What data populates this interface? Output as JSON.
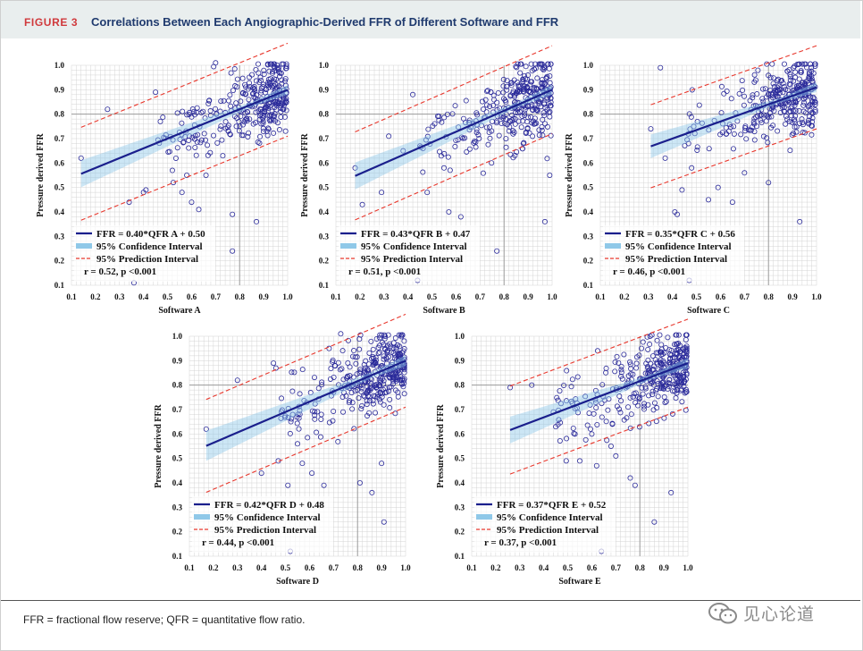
{
  "header": {
    "figure_label": "FIGURE 3",
    "title": "Correlations Between Each Angiographic-Derived FFR of Different Software and FFR"
  },
  "footer": {
    "note": "FFR = fractional flow reserve; QFR = quantitative flow ratio."
  },
  "watermark": {
    "text": "见心论道",
    "icon": "wechat-icon"
  },
  "colors": {
    "regression": "#1a1f8c",
    "ci_band": "#8fc8e8",
    "prediction": "#e8372c",
    "points": "#2a2a9a",
    "grid": "#d4d4d4",
    "cutoff": "#9a9a9a"
  },
  "chart_data": [
    {
      "id": "A",
      "type": "scatter",
      "xlabel": "Software A",
      "ylabel": "Pressure derived FFR",
      "xlim": [
        0.1,
        1.0
      ],
      "ylim": [
        0.1,
        1.0
      ],
      "x_ticks": [
        "0.1",
        "0.2",
        "0.3",
        "0.4",
        "0.5",
        "0.6",
        "0.7",
        "0.8",
        "0.9",
        "1.0"
      ],
      "y_ticks": [
        "0.1",
        "0.2",
        "0.3",
        "0.4",
        "0.5",
        "0.6",
        "0.7",
        "0.8",
        "0.9",
        "1.0"
      ],
      "cutoff": 0.8,
      "slope": 0.4,
      "intercept": 0.5,
      "x_range": [
        0.14,
        1.0
      ],
      "pi_offset": 0.19,
      "ci_half": 0.025,
      "legend": [
        "FFR = 0.40*QFR A + 0.50",
        "95% Confidence Interval",
        "95% Prediction Interval",
        "r = 0.52, p <0.001"
      ],
      "outliers": [
        [
          0.14,
          0.62
        ],
        [
          0.25,
          0.82
        ],
        [
          0.34,
          0.44
        ],
        [
          0.4,
          0.48
        ],
        [
          0.41,
          0.49
        ],
        [
          0.45,
          0.89
        ],
        [
          0.56,
          0.48
        ],
        [
          0.6,
          0.44
        ],
        [
          0.63,
          0.41
        ],
        [
          0.7,
          1.01
        ],
        [
          0.73,
          0.63
        ],
        [
          0.77,
          0.39
        ],
        [
          0.77,
          0.24
        ],
        [
          0.87,
          0.36
        ],
        [
          0.47,
          0.77
        ],
        [
          0.52,
          0.57
        ],
        [
          0.58,
          0.55
        ],
        [
          0.66,
          0.55
        ],
        [
          0.36,
          0.11
        ]
      ],
      "n_cloud": 330,
      "seed": 11
    },
    {
      "id": "B",
      "type": "scatter",
      "xlabel": "Software B",
      "ylabel": "Pressure derived FFR",
      "xlim": [
        0.1,
        1.0
      ],
      "ylim": [
        0.1,
        1.0
      ],
      "x_ticks": [
        "0.1",
        "0.2",
        "0.3",
        "0.4",
        "0.5",
        "0.6",
        "0.7",
        "0.8",
        "0.9",
        "1.0"
      ],
      "y_ticks": [
        "0.1",
        "0.2",
        "0.3",
        "0.4",
        "0.5",
        "0.6",
        "0.7",
        "0.8",
        "0.9",
        "1.0"
      ],
      "cutoff": 0.8,
      "slope": 0.43,
      "intercept": 0.47,
      "x_range": [
        0.18,
        1.0
      ],
      "pi_offset": 0.18,
      "ci_half": 0.025,
      "legend": [
        "FFR = 0.43*QFR B + 0.47",
        "95% Confidence Interval",
        "95% Prediction Interval",
        "r = 0.51, p <0.001"
      ],
      "outliers": [
        [
          0.18,
          0.58
        ],
        [
          0.21,
          0.43
        ],
        [
          0.29,
          0.48
        ],
        [
          0.32,
          0.71
        ],
        [
          0.38,
          0.65
        ],
        [
          0.42,
          0.88
        ],
        [
          0.45,
          0.67
        ],
        [
          0.48,
          0.48
        ],
        [
          0.55,
          0.58
        ],
        [
          0.57,
          0.4
        ],
        [
          0.62,
          0.38
        ],
        [
          0.77,
          0.24
        ],
        [
          0.97,
          0.36
        ],
        [
          0.44,
          0.12
        ],
        [
          0.99,
          0.55
        ]
      ],
      "n_cloud": 330,
      "seed": 23
    },
    {
      "id": "C",
      "type": "scatter",
      "xlabel": "Software C",
      "ylabel": "Pressure derived FFR",
      "xlim": [
        0.1,
        1.0
      ],
      "ylim": [
        0.1,
        1.0
      ],
      "x_ticks": [
        "0.1",
        "0.2",
        "0.3",
        "0.4",
        "0.5",
        "0.6",
        "0.7",
        "0.8",
        "0.9",
        "1.0"
      ],
      "y_ticks": [
        "0.1",
        "0.2",
        "0.3",
        "0.4",
        "0.5",
        "0.6",
        "0.7",
        "0.8",
        "0.9",
        "1.0"
      ],
      "cutoff": 0.8,
      "slope": 0.35,
      "intercept": 0.56,
      "x_range": [
        0.31,
        1.0
      ],
      "pi_offset": 0.17,
      "ci_half": 0.022,
      "legend": [
        "FFR = 0.35*QFR C + 0.56",
        "95% Confidence Interval",
        "95% Prediction Interval",
        "r = 0.46, p <0.001"
      ],
      "outliers": [
        [
          0.31,
          0.74
        ],
        [
          0.35,
          0.99
        ],
        [
          0.41,
          0.4
        ],
        [
          0.42,
          0.39
        ],
        [
          0.44,
          0.49
        ],
        [
          0.47,
          0.12
        ],
        [
          0.55,
          0.45
        ],
        [
          0.59,
          0.5
        ],
        [
          0.65,
          0.44
        ],
        [
          0.7,
          0.56
        ],
        [
          0.8,
          0.52
        ],
        [
          0.93,
          0.36
        ],
        [
          0.37,
          0.62
        ],
        [
          0.48,
          0.58
        ]
      ],
      "n_cloud": 330,
      "seed": 37
    },
    {
      "id": "D",
      "type": "scatter",
      "xlabel": "Software D",
      "ylabel": "Pressure derived FFR",
      "xlim": [
        0.1,
        1.0
      ],
      "ylim": [
        0.1,
        1.0
      ],
      "x_ticks": [
        "0.1",
        "0.2",
        "0.3",
        "0.4",
        "0.5",
        "0.6",
        "0.7",
        "0.8",
        "0.9",
        "1.0"
      ],
      "y_ticks": [
        "0.1",
        "0.2",
        "0.3",
        "0.4",
        "0.5",
        "0.6",
        "0.7",
        "0.8",
        "0.9",
        "1.0"
      ],
      "cutoff": 0.8,
      "slope": 0.42,
      "intercept": 0.48,
      "x_range": [
        0.17,
        1.0
      ],
      "pi_offset": 0.19,
      "ci_half": 0.028,
      "legend": [
        "FFR = 0.42*QFR D + 0.48",
        "95% Confidence Interval",
        "95% Prediction Interval",
        "r = 0.44, p <0.001"
      ],
      "outliers": [
        [
          0.17,
          0.62
        ],
        [
          0.3,
          0.82
        ],
        [
          0.4,
          0.44
        ],
        [
          0.45,
          0.89
        ],
        [
          0.47,
          0.49
        ],
        [
          0.51,
          0.39
        ],
        [
          0.57,
          0.48
        ],
        [
          0.61,
          0.44
        ],
        [
          0.66,
          0.39
        ],
        [
          0.73,
          1.01
        ],
        [
          0.81,
          0.4
        ],
        [
          0.86,
          0.36
        ],
        [
          0.9,
          0.48
        ],
        [
          0.91,
          0.24
        ],
        [
          0.52,
          0.12
        ],
        [
          0.55,
          0.56
        ]
      ],
      "n_cloud": 360,
      "seed": 53
    },
    {
      "id": "E",
      "type": "scatter",
      "xlabel": "Software E",
      "ylabel": "Pressure derived FFR",
      "xlim": [
        0.1,
        1.0
      ],
      "ylim": [
        0.1,
        1.0
      ],
      "x_ticks": [
        "0.1",
        "0.2",
        "0.3",
        "0.4",
        "0.5",
        "0.6",
        "0.7",
        "0.8",
        "0.9",
        "1.0"
      ],
      "y_ticks": [
        "0.1",
        "0.2",
        "0.3",
        "0.4",
        "0.5",
        "0.6",
        "0.7",
        "0.8",
        "0.9",
        "1.0"
      ],
      "cutoff": 0.8,
      "slope": 0.37,
      "intercept": 0.52,
      "x_range": [
        0.26,
        1.0
      ],
      "pi_offset": 0.18,
      "ci_half": 0.025,
      "legend": [
        "FFR = 0.37*QFR E + 0.52",
        "95% Confidence Interval",
        "95% Prediction Interval",
        "r = 0.37, p <0.001"
      ],
      "outliers": [
        [
          0.26,
          0.79
        ],
        [
          0.35,
          0.8
        ],
        [
          0.44,
          0.69
        ],
        [
          0.45,
          0.63
        ],
        [
          0.53,
          0.6
        ],
        [
          0.55,
          0.49
        ],
        [
          0.62,
          0.47
        ],
        [
          0.64,
          0.12
        ],
        [
          0.7,
          0.51
        ],
        [
          0.76,
          0.42
        ],
        [
          0.86,
          0.24
        ],
        [
          0.93,
          0.36
        ],
        [
          0.6,
          0.6
        ],
        [
          0.68,
          0.55
        ],
        [
          0.78,
          0.39
        ]
      ],
      "n_cloud": 360,
      "seed": 71
    }
  ]
}
